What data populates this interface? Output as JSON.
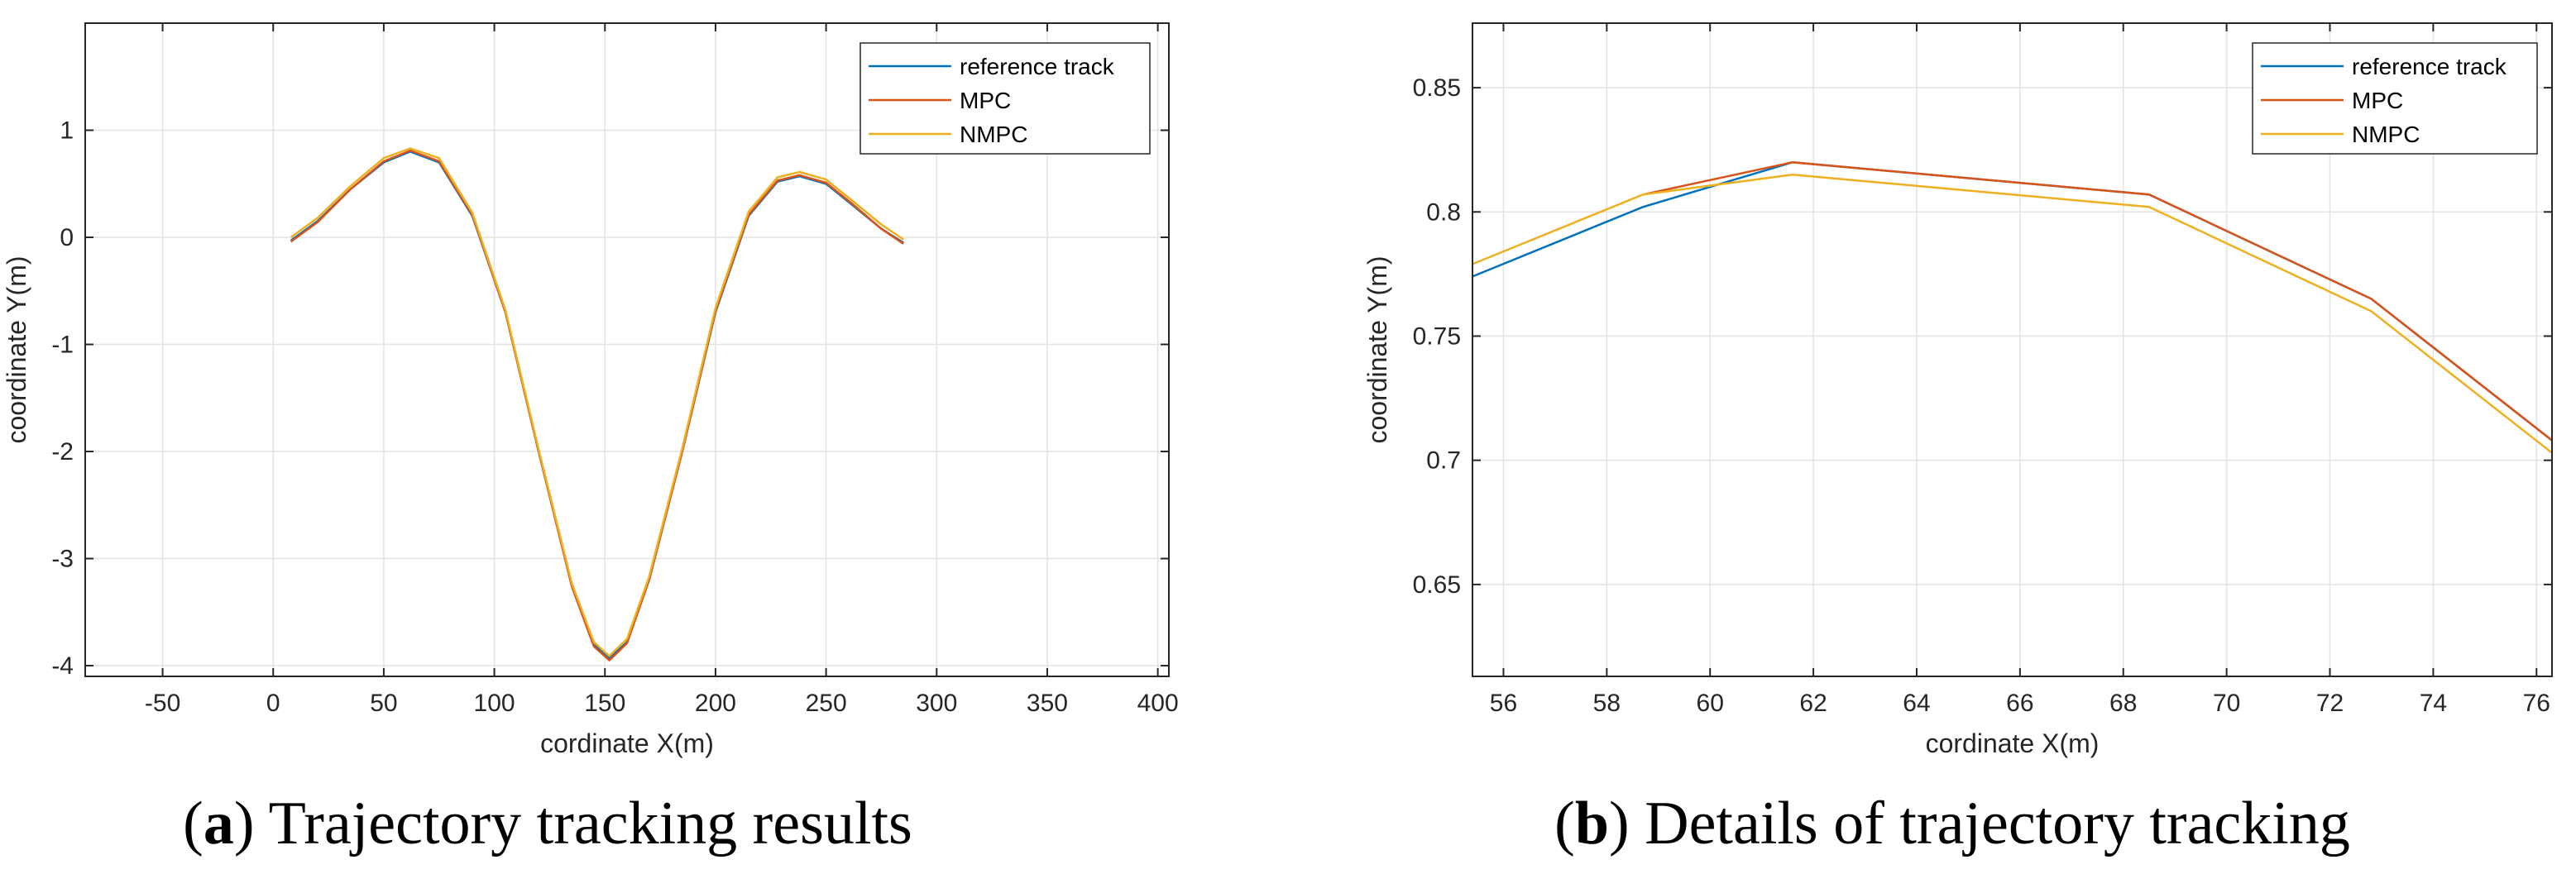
{
  "colors": {
    "reference": "#0072BD",
    "mpc": "#D95319",
    "nmpc": "#EDB120",
    "grid": "#e3e3e3",
    "axis": "#262626"
  },
  "chart_data": [
    {
      "id": "a",
      "type": "line",
      "caption_letter": "a",
      "caption_text": "Trajectory tracking results",
      "paren_open": "(",
      "paren_close": ")",
      "xlabel": "cordinate X(m)",
      "ylabel": "coordinate Y(m)",
      "xlim": [
        -85,
        405
      ],
      "ylim": [
        -4.1,
        2.0
      ],
      "xticks": [
        -50,
        0,
        50,
        100,
        150,
        200,
        250,
        300,
        350,
        400
      ],
      "xtick_labels": [
        "-50",
        "0",
        "50",
        "100",
        "150",
        "200",
        "250",
        "300",
        "350",
        "400"
      ],
      "yticks": [
        -4,
        -3,
        -2,
        -1,
        0,
        1
      ],
      "ytick_labels": [
        "-4",
        "-3",
        "-2",
        "-1",
        "0",
        "1"
      ],
      "grid": true,
      "legend": "top-right",
      "series": [
        {
          "name": "reference track",
          "color_key": "reference",
          "x": [
            8,
            20,
            35,
            50,
            62,
            75,
            90,
            105,
            120,
            135,
            145,
            152,
            160,
            170,
            185,
            200,
            215,
            228,
            238,
            250,
            262,
            275,
            285
          ],
          "y": [
            -0.03,
            0.15,
            0.45,
            0.7,
            0.8,
            0.7,
            0.2,
            -0.7,
            -2.0,
            -3.25,
            -3.8,
            -3.93,
            -3.78,
            -3.2,
            -2.0,
            -0.7,
            0.2,
            0.52,
            0.57,
            0.5,
            0.3,
            0.08,
            -0.05
          ]
        },
        {
          "name": "MPC",
          "color_key": "mpc",
          "x": [
            8,
            20,
            35,
            50,
            62,
            75,
            90,
            105,
            120,
            135,
            145,
            152,
            160,
            170,
            185,
            200,
            215,
            228,
            238,
            250,
            262,
            275,
            285
          ],
          "y": [
            -0.04,
            0.14,
            0.45,
            0.71,
            0.81,
            0.71,
            0.21,
            -0.7,
            -2.0,
            -3.26,
            -3.82,
            -3.95,
            -3.79,
            -3.2,
            -2.0,
            -0.69,
            0.21,
            0.53,
            0.58,
            0.51,
            0.31,
            0.08,
            -0.06
          ]
        },
        {
          "name": "NMPC",
          "color_key": "nmpc",
          "x": [
            8,
            20,
            35,
            50,
            62,
            75,
            90,
            105,
            120,
            135,
            145,
            152,
            160,
            170,
            185,
            200,
            215,
            228,
            238,
            250,
            262,
            275,
            285
          ],
          "y": [
            0.0,
            0.18,
            0.48,
            0.74,
            0.83,
            0.74,
            0.23,
            -0.68,
            -1.98,
            -3.23,
            -3.78,
            -3.91,
            -3.75,
            -3.17,
            -1.97,
            -0.66,
            0.24,
            0.56,
            0.61,
            0.54,
            0.34,
            0.12,
            -0.02
          ]
        }
      ]
    },
    {
      "id": "b",
      "type": "line",
      "caption_letter": "b",
      "caption_text": "Details of trajectory tracking",
      "paren_open": "(",
      "paren_close": ")",
      "xlabel": "cordinate X(m)",
      "ylabel": "coordinate Y(m)",
      "xlim": [
        55.4,
        76.3
      ],
      "ylim": [
        0.613,
        0.876
      ],
      "xticks": [
        56,
        58,
        60,
        62,
        64,
        66,
        68,
        70,
        72,
        74,
        76
      ],
      "xtick_labels": [
        "56",
        "58",
        "60",
        "62",
        "64",
        "66",
        "68",
        "70",
        "72",
        "74",
        "76"
      ],
      "yticks": [
        0.65,
        0.7,
        0.75,
        0.8,
        0.85
      ],
      "ytick_labels": [
        "0.65",
        "0.7",
        "0.75",
        "0.8",
        "0.85"
      ],
      "grid": true,
      "legend": "top-right",
      "series": [
        {
          "name": "reference track",
          "color_key": "reference",
          "x": [
            55.4,
            58.7,
            61.6,
            68.5,
            72.8,
            76.3
          ],
          "y": [
            0.774,
            0.802,
            0.82,
            0.807,
            0.765,
            0.708
          ]
        },
        {
          "name": "MPC",
          "color_key": "mpc",
          "x": [
            58.7,
            61.6,
            68.5,
            72.8,
            76.3
          ],
          "y": [
            0.807,
            0.82,
            0.807,
            0.765,
            0.708
          ]
        },
        {
          "name": "NMPC",
          "color_key": "nmpc",
          "x": [
            55.4,
            58.7,
            61.6,
            68.5,
            72.8,
            76.3
          ],
          "y": [
            0.779,
            0.807,
            0.815,
            0.802,
            0.76,
            0.703
          ]
        }
      ]
    }
  ]
}
